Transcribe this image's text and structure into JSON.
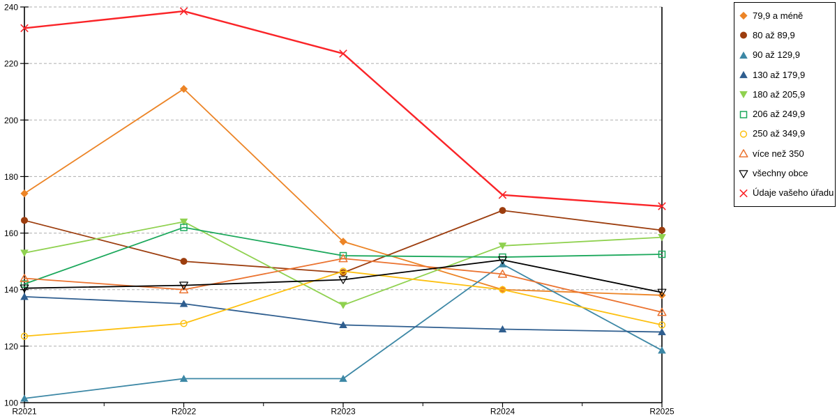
{
  "chart_data": {
    "type": "line",
    "title": "",
    "xlabel": "",
    "ylabel": "",
    "grid": "horizontal-dashed",
    "legend_position": "right",
    "x_categories": [
      "R2021",
      "R2022",
      "R2023",
      "R2024",
      "R2025"
    ],
    "y_axis": {
      "min": 100,
      "max": 240,
      "step": 20,
      "ticks": [
        100,
        120,
        140,
        160,
        180,
        200,
        220,
        240
      ]
    },
    "series": [
      {
        "name": "79,9 a méně",
        "color": "#EC8426",
        "marker": "diamond",
        "fill": true,
        "values": [
          174,
          211,
          157,
          140,
          138
        ]
      },
      {
        "name": "80 až 89,9",
        "color": "#9C3D0E",
        "marker": "circle",
        "fill": true,
        "values": [
          164.5,
          150,
          146,
          168,
          161
        ]
      },
      {
        "name": "90 až 129,9",
        "color": "#3C87A5",
        "marker": "triangle-up",
        "fill": true,
        "values": [
          101.5,
          108.5,
          108.5,
          149,
          118.5
        ]
      },
      {
        "name": "130 až 179,9",
        "color": "#2F5E8F",
        "marker": "triangle-up",
        "fill": true,
        "values": [
          137.5,
          135,
          127.5,
          126,
          125
        ]
      },
      {
        "name": "180 až 205,9",
        "color": "#8FD14F",
        "marker": "triangle-down",
        "fill": true,
        "values": [
          153,
          164,
          134.5,
          155.5,
          158.5
        ]
      },
      {
        "name": "206 až 249,9",
        "color": "#1CA85C",
        "marker": "square",
        "fill": false,
        "values": [
          142,
          162,
          152,
          151.5,
          152.5
        ]
      },
      {
        "name": "250 až 349,9",
        "color": "#FDC010",
        "marker": "circle",
        "fill": false,
        "values": [
          123.5,
          128,
          146.5,
          140,
          127.5
        ]
      },
      {
        "name": "více než 350",
        "color": "#EB7330",
        "marker": "triangle-up",
        "fill": false,
        "values": [
          144,
          140,
          151,
          145.5,
          132
        ]
      },
      {
        "name": "všechny obce",
        "color": "#000000",
        "marker": "triangle-down",
        "fill": false,
        "values": [
          140.5,
          141.5,
          143.5,
          150.5,
          139
        ]
      },
      {
        "name": "Údaje vašeho úřadu",
        "color": "#FA2428",
        "marker": "x",
        "fill": false,
        "values": [
          232.5,
          238.5,
          223.5,
          173.5,
          169.5
        ]
      }
    ],
    "style": {
      "grid_color": "#ADADAD",
      "axis_color": "#000000",
      "background": "#FFFFFF"
    }
  }
}
